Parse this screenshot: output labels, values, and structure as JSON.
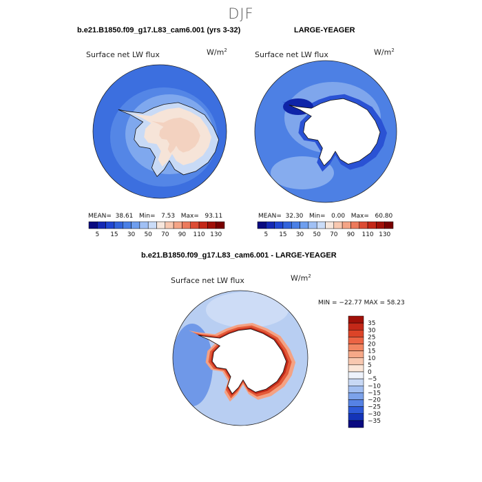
{
  "page": {
    "title": "DJF"
  },
  "panels": {
    "top_left": {
      "title": "b.e21.B1850.f09_g17.L83_cam6.001 (yrs 3-32)",
      "variable": "Surface net LW flux",
      "units": "W/m",
      "units_exp": "2",
      "stats": {
        "mean_label": "MEAN=",
        "mean": "38.61",
        "min_label": "Min=",
        "min": "7.53",
        "max_label": "Max=",
        "max": "93.11"
      }
    },
    "top_right": {
      "title": "LARGE-YEAGER",
      "variable": "Surface net LW flux",
      "units": "W/m",
      "units_exp": "2",
      "stats": {
        "mean_label": "MEAN=",
        "mean": "32.30",
        "min_label": "Min=",
        "min": "0.00",
        "max_label": "Max=",
        "max": "60.80"
      }
    },
    "bottom": {
      "title": "b.e21.B1850.f09_g17.L83_cam6.001 - LARGE-YEAGER",
      "variable": "Surface net LW flux",
      "units": "W/m",
      "units_exp": "2",
      "stats": "MIN = −22.77  MAX =  58.23"
    }
  },
  "chart_data": [
    {
      "type": "heatmap",
      "title": "b.e21.B1850.f09_g17.L83_cam6.001 (yrs 3-32)",
      "subtitle": "Surface net LW flux",
      "units": "W/m2",
      "projection": "south polar stereographic",
      "mean": 38.61,
      "min": 7.53,
      "max": 93.11,
      "colorbar_levels": [
        5,
        10,
        15,
        20,
        30,
        40,
        50,
        60,
        70,
        80,
        90,
        100,
        110,
        120,
        130
      ],
      "colorbar_tick_labels": [
        "5",
        "15",
        "30",
        "50",
        "70",
        "90",
        "110",
        "130"
      ],
      "colors": [
        "#0a0a80",
        "#1428b4",
        "#2046d2",
        "#3264dc",
        "#4a80e6",
        "#6e9eee",
        "#a0c0f4",
        "#cadcf8",
        "#f6e6dc",
        "#f8c8b0",
        "#f4a486",
        "#ec7a5c",
        "#dc4c34",
        "#c42818",
        "#a01008",
        "#780000"
      ]
    },
    {
      "type": "heatmap",
      "title": "LARGE-YEAGER",
      "subtitle": "Surface net LW flux",
      "units": "W/m2",
      "projection": "south polar stereographic",
      "mean": 32.3,
      "min": 0.0,
      "max": 60.8,
      "colorbar_levels": [
        5,
        10,
        15,
        20,
        30,
        40,
        50,
        60,
        70,
        80,
        90,
        100,
        110,
        120,
        130
      ],
      "colorbar_tick_labels": [
        "5",
        "15",
        "30",
        "50",
        "70",
        "90",
        "110",
        "130"
      ],
      "colors": [
        "#0a0a80",
        "#1428b4",
        "#2046d2",
        "#3264dc",
        "#4a80e6",
        "#6e9eee",
        "#a0c0f4",
        "#cadcf8",
        "#f6e6dc",
        "#f8c8b0",
        "#f4a486",
        "#ec7a5c",
        "#dc4c34",
        "#c42818",
        "#a01008",
        "#780000"
      ]
    },
    {
      "type": "heatmap",
      "title": "b.e21.B1850.f09_g17.L83_cam6.001 - LARGE-YEAGER",
      "subtitle": "Surface net LW flux",
      "units": "W/m2",
      "projection": "south polar stereographic",
      "min": -22.77,
      "max": 58.23,
      "colorbar_levels": [
        35,
        30,
        25,
        20,
        15,
        10,
        5,
        0,
        -5,
        -10,
        -15,
        -20,
        -25,
        -30,
        -35
      ],
      "colorbar_tick_labels": [
        "35",
        "30",
        "25",
        "20",
        "15",
        "10",
        "5",
        "0",
        "−5",
        "−10",
        "−15",
        "−20",
        "−25",
        "−30",
        "−35"
      ],
      "colors": [
        "#a01008",
        "#c42818",
        "#dc4428",
        "#ec6444",
        "#f28662",
        "#f6a888",
        "#f8c8b0",
        "#fbe6d8",
        "#eef2fb",
        "#c8d8f4",
        "#a2bef0",
        "#7ca2ea",
        "#5682e4",
        "#2e5ad8",
        "#1434b8",
        "#0a0a80"
      ]
    }
  ]
}
